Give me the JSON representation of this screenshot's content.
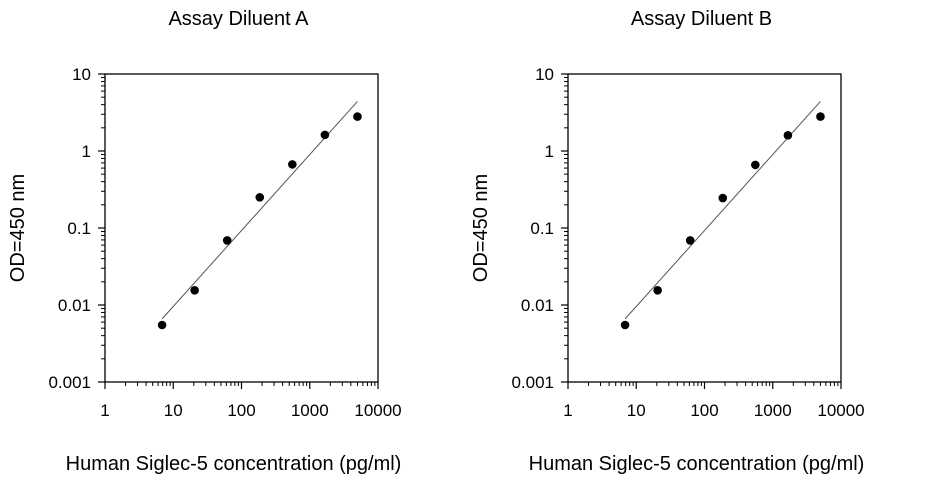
{
  "chart_data": [
    {
      "type": "scatter",
      "title": "Assay Diluent A",
      "xlabel": "Human Siglec-5 concentration (pg/ml)",
      "ylabel": "OD=450 nm",
      "x_scale": "log",
      "y_scale": "log",
      "xlim": [
        1,
        10000
      ],
      "ylim": [
        0.001,
        10
      ],
      "x_ticks": [
        "1",
        "10",
        "100",
        "1000",
        "10000"
      ],
      "y_ticks": [
        "0.001",
        "0.01",
        "0.1",
        "1",
        "10"
      ],
      "grid": false,
      "legend": "none",
      "series": [
        {
          "x": [
            6.86,
            20.58,
            61.73,
            185.2,
            555.6,
            1667,
            5000
          ],
          "y": [
            0.0055,
            0.0155,
            0.069,
            0.25,
            0.67,
            1.62,
            2.8
          ]
        }
      ],
      "fit_line": {
        "x": [
          6.86,
          5000
        ],
        "y": [
          0.0066,
          4.4
        ]
      }
    },
    {
      "type": "scatter",
      "title": "Assay Diluent B",
      "xlabel": "Human Siglec-5 concentration (pg/ml)",
      "ylabel": "OD=450 nm",
      "x_scale": "log",
      "y_scale": "log",
      "xlim": [
        1,
        10000
      ],
      "ylim": [
        0.001,
        10
      ],
      "x_ticks": [
        "1",
        "10",
        "100",
        "1000",
        "10000"
      ],
      "y_ticks": [
        "0.001",
        "0.01",
        "0.1",
        "1",
        "10"
      ],
      "grid": false,
      "legend": "none",
      "series": [
        {
          "x": [
            6.86,
            20.58,
            61.73,
            185.2,
            555.6,
            1667,
            5000
          ],
          "y": [
            0.0055,
            0.0155,
            0.069,
            0.245,
            0.66,
            1.6,
            2.8
          ]
        }
      ],
      "fit_line": {
        "x": [
          6.86,
          5000
        ],
        "y": [
          0.0066,
          4.4
        ]
      }
    }
  ]
}
